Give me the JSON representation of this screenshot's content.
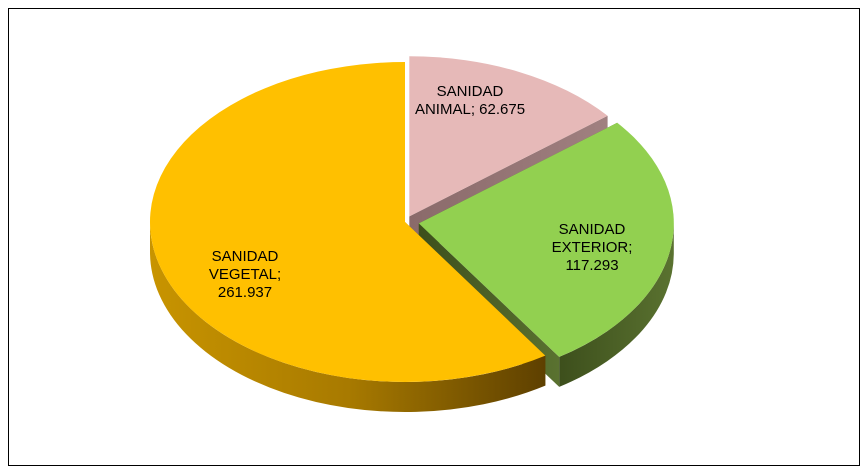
{
  "chart_data": {
    "type": "pie",
    "values": [
      62.675,
      117.293,
      261.937
    ],
    "value_labels": [
      "SANIDAD ANIMAL; 62.675",
      "SANIDAD EXTERIOR; 117.293",
      "SANIDAD VEGETAL; 261.937"
    ],
    "colors": [
      "#e6b9b8",
      "#92d050",
      "#ffc000"
    ]
  }
}
